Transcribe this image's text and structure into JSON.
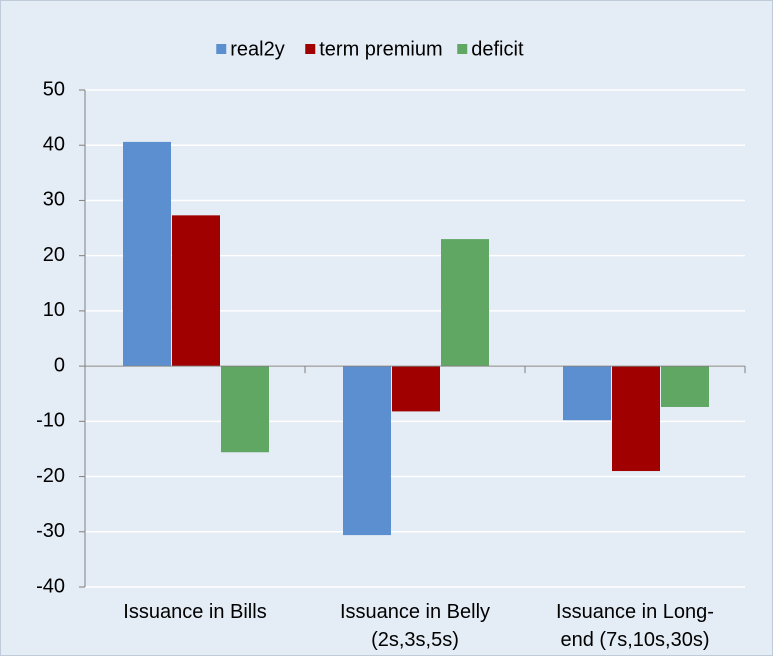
{
  "chart_data": {
    "type": "bar",
    "categories": [
      [
        "Issuance in Bills"
      ],
      [
        "Issuance in Belly",
        "(2s,3s,5s)"
      ],
      [
        "Issuance in Long-",
        "end (7s,10s,30s)"
      ]
    ],
    "series": [
      {
        "name": "real2y",
        "color": "#5b8fd0",
        "values": [
          40.6,
          -30.6,
          -9.8
        ]
      },
      {
        "name": "term premium",
        "color": "#a00000",
        "values": [
          27.3,
          -8.2,
          -19
        ]
      },
      {
        "name": "deficit",
        "color": "#5fa763",
        "values": [
          -15.6,
          23,
          -7.4
        ]
      }
    ],
    "ylim": [
      -40,
      50
    ],
    "yticks": [
      -40,
      -30,
      -20,
      -10,
      0,
      10,
      20,
      30,
      40,
      50
    ],
    "grid": true,
    "legend": "top"
  }
}
